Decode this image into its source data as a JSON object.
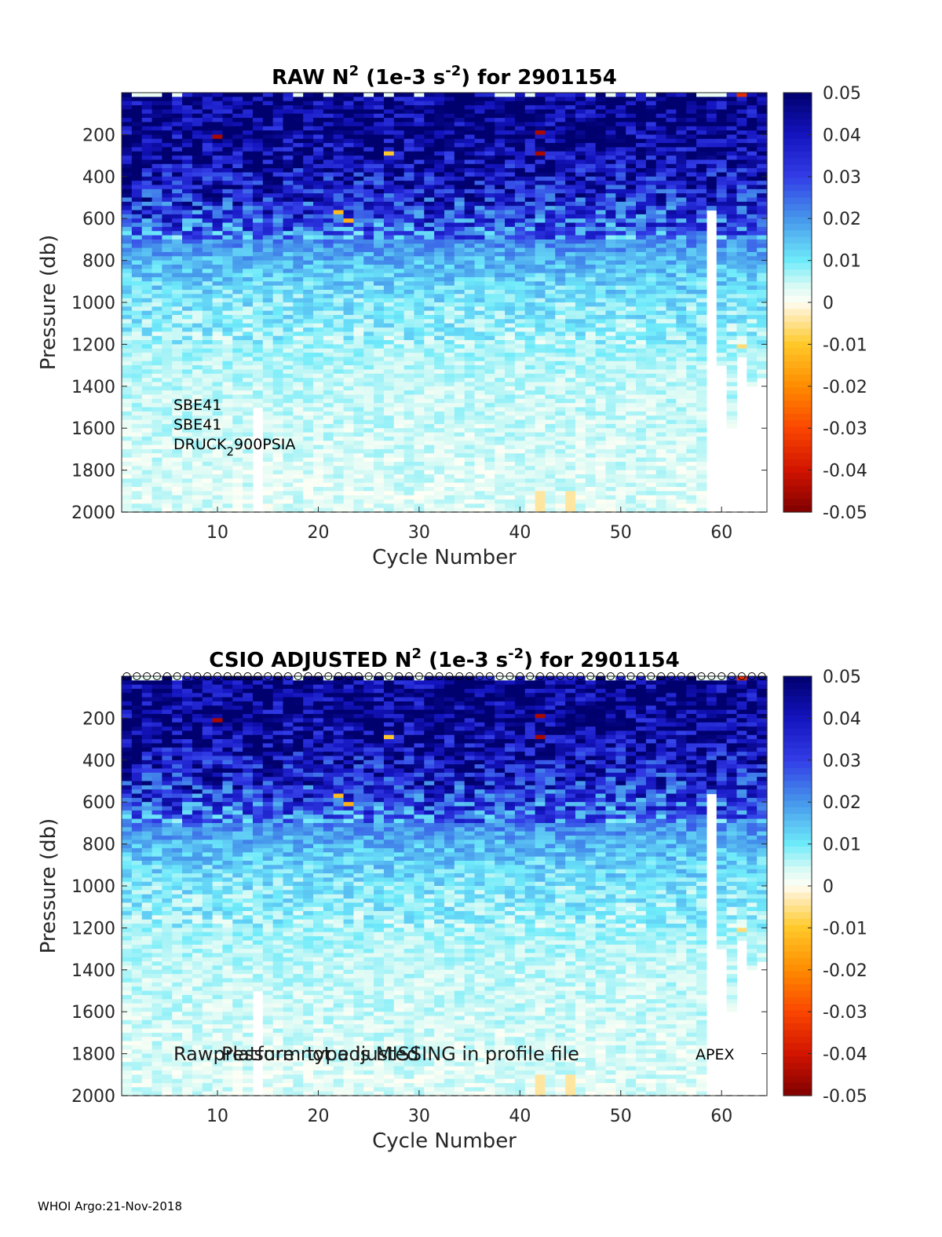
{
  "footer": "WHOI Argo:21-Nov-2018",
  "chart_data": [
    {
      "type": "heatmap",
      "title": "RAW N",
      "title_sup1": "2",
      "title_mid": " (1e-3 s",
      "title_sup2": "-2",
      "title_end": ") for 2901154",
      "xlabel": "Cycle Number",
      "ylabel": "Pressure (db)",
      "xlim": [
        1,
        64
      ],
      "ylim": [
        0,
        2000
      ],
      "y_reversed": true,
      "xticks": [
        10,
        20,
        30,
        40,
        50,
        60
      ],
      "yticks": [
        200,
        400,
        600,
        800,
        1000,
        1200,
        1400,
        1600,
        1800,
        2000
      ],
      "colorbar": {
        "range": [
          -0.05,
          0.05
        ],
        "ticks": [
          "0.05",
          "0.04",
          "0.03",
          "0.02",
          "0.01",
          "0",
          "-0.01",
          "-0.02",
          "-0.03",
          "-0.04",
          "-0.05"
        ],
        "colormap": "blue-cyan-white-yellow-red"
      },
      "profile_markers": false,
      "annotations": {
        "sensor1": "SBE41",
        "sensor2": "SBE41",
        "sensor3_a": "DRUCK",
        "sensor3_sub": "2",
        "sensor3_b": "900PSIA"
      },
      "value_profile": [
        {
          "p": 100,
          "v": 0.048
        },
        {
          "p": 300,
          "v": 0.045
        },
        {
          "p": 450,
          "v": 0.038
        },
        {
          "p": 600,
          "v": 0.03
        },
        {
          "p": 700,
          "v": 0.022
        },
        {
          "p": 800,
          "v": 0.016
        },
        {
          "p": 1000,
          "v": 0.01
        },
        {
          "p": 1200,
          "v": 0.007
        },
        {
          "p": 1400,
          "v": 0.005
        },
        {
          "p": 1700,
          "v": 0.004
        },
        {
          "p": 2000,
          "v": 0.003
        }
      ]
    },
    {
      "type": "heatmap",
      "title": "CSIO  ADJUSTED N",
      "title_sup1": "2",
      "title_mid": " (1e-3 s",
      "title_sup2": "-2",
      "title_end": ") for 2901154",
      "xlabel": "Cycle Number",
      "ylabel": "Pressure (db)",
      "xlim": [
        1,
        64
      ],
      "ylim": [
        0,
        2000
      ],
      "y_reversed": true,
      "xticks": [
        10,
        20,
        30,
        40,
        50,
        60
      ],
      "yticks": [
        200,
        400,
        600,
        800,
        1000,
        1200,
        1400,
        1600,
        1800,
        2000
      ],
      "colorbar": {
        "range": [
          -0.05,
          0.05
        ],
        "ticks": [
          "0.05",
          "0.04",
          "0.03",
          "0.02",
          "0.01",
          "0",
          "-0.01",
          "-0.02",
          "-0.03",
          "-0.04",
          "-0.05"
        ],
        "colormap": "blue-cyan-white-yellow-red"
      },
      "profile_markers": true,
      "annotations": {
        "overlap1": "Rawpressure not adjusted",
        "overlap2": "Platform type is MISSING in profile file",
        "platform": "APEX"
      },
      "value_profile": [
        {
          "p": 100,
          "v": 0.048
        },
        {
          "p": 300,
          "v": 0.045
        },
        {
          "p": 450,
          "v": 0.038
        },
        {
          "p": 600,
          "v": 0.03
        },
        {
          "p": 700,
          "v": 0.022
        },
        {
          "p": 800,
          "v": 0.016
        },
        {
          "p": 1000,
          "v": 0.01
        },
        {
          "p": 1200,
          "v": 0.007
        },
        {
          "p": 1400,
          "v": 0.005
        },
        {
          "p": 1700,
          "v": 0.004
        },
        {
          "p": 2000,
          "v": 0.003
        }
      ]
    }
  ]
}
